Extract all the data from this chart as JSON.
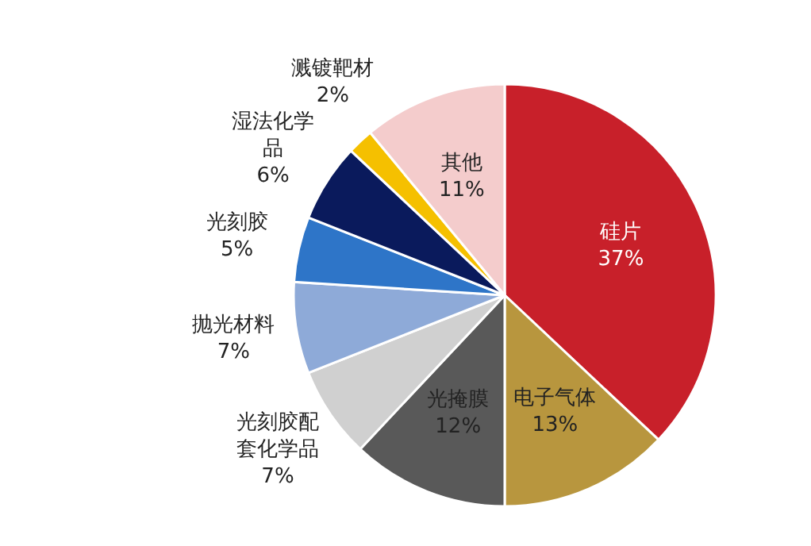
{
  "chart_data": {
    "type": "pie",
    "categories": [
      "硅片",
      "电子气体",
      "光掩膜",
      "光刻胶配套化学品",
      "抛光材料",
      "光刻胶",
      "湿法化学品",
      "溅镀靶材",
      "其他"
    ],
    "values": [
      37,
      13,
      12,
      7,
      7,
      5,
      6,
      2,
      11
    ],
    "value_labels": [
      "37%",
      "13%",
      "12%",
      "7%",
      "7%",
      "5%",
      "6%",
      "2%",
      "11%"
    ],
    "colors": [
      "#c8202a",
      "#b8963e",
      "#595959",
      "#d0d0d0",
      "#8eaad8",
      "#2e75c8",
      "#0a1a5c",
      "#f5c000",
      "#f4cccc"
    ]
  }
}
